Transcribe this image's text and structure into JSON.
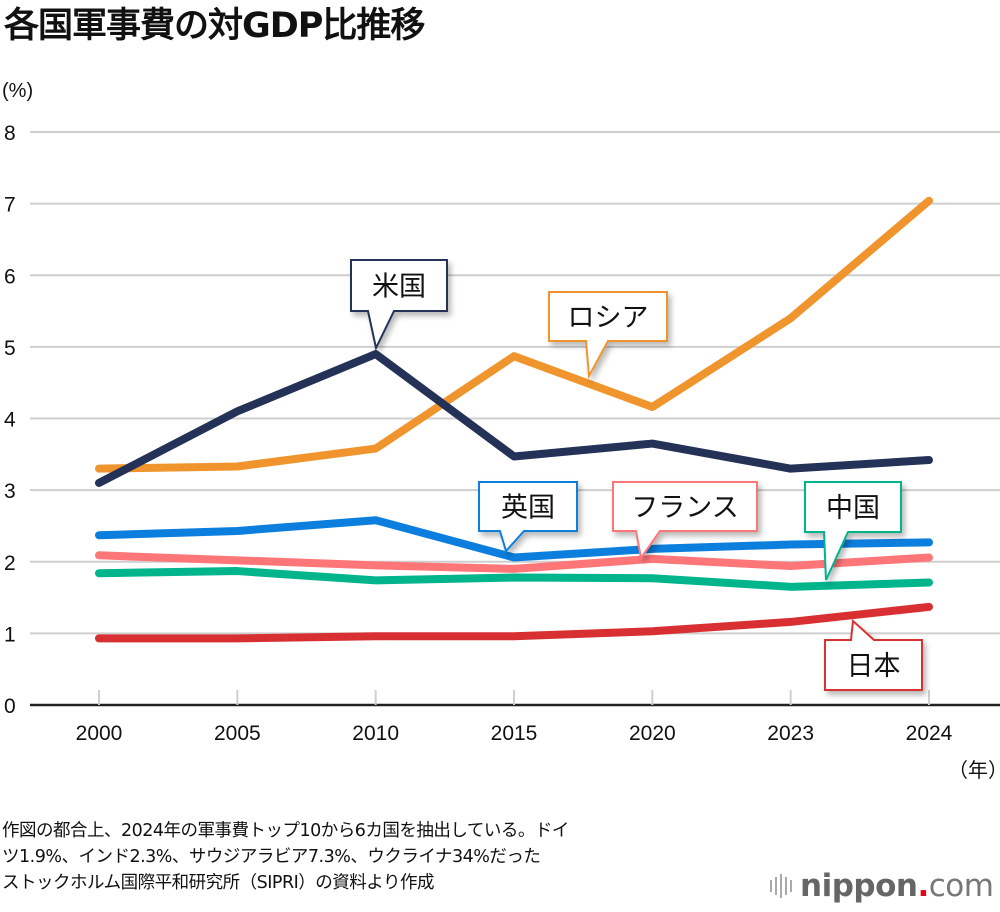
{
  "title": "各国軍事費の対GDP比推移",
  "y_unit": "(%)",
  "x_unit": "（年）",
  "chart_data": {
    "type": "line",
    "title": "各国軍事費の対GDP比推移",
    "xlabel": "（年）",
    "ylabel": "(%)",
    "categories": [
      "2000",
      "2005",
      "2010",
      "2015",
      "2020",
      "2023",
      "2024"
    ],
    "ylim": [
      0,
      8
    ],
    "yticks": [
      "0",
      "1",
      "2",
      "3",
      "4",
      "5",
      "6",
      "7",
      "8"
    ],
    "grid": true,
    "legend": "callouts",
    "series": [
      {
        "name": "米国",
        "key": "usa",
        "color": "#253258",
        "values": [
          3.1,
          4.1,
          4.9,
          3.47,
          3.65,
          3.3,
          3.42
        ]
      },
      {
        "name": "ロシア",
        "key": "russia",
        "color": "#f0952d",
        "values": [
          3.3,
          3.33,
          3.58,
          4.87,
          4.16,
          5.4,
          7.04
        ]
      },
      {
        "name": "英国",
        "key": "uk",
        "color": "#0c7fde",
        "values": [
          2.37,
          2.43,
          2.58,
          2.06,
          2.18,
          2.24,
          2.27
        ]
      },
      {
        "name": "フランス",
        "key": "france",
        "color": "#ff7679",
        "values": [
          2.09,
          2.02,
          1.95,
          1.9,
          2.04,
          1.94,
          2.06
        ]
      },
      {
        "name": "中国",
        "key": "china",
        "color": "#00b48c",
        "values": [
          1.84,
          1.87,
          1.74,
          1.78,
          1.77,
          1.65,
          1.71
        ]
      },
      {
        "name": "日本",
        "key": "japan",
        "color": "#d83032",
        "values": [
          0.93,
          0.93,
          0.96,
          0.96,
          1.03,
          1.16,
          1.37
        ]
      }
    ]
  },
  "notes": [
    "作図の都合上、2024年の軍事費トップ10から6カ国を抽出している。ドイ",
    "ツ1.9%、インド2.3%、サウジアラビア7.3%、ウクライナ34%だった",
    "ストックホルム国際平和研究所（SIPRI）の資料より作成"
  ],
  "logo": {
    "name": "nippon",
    "dot": ".",
    "tld": "com"
  }
}
